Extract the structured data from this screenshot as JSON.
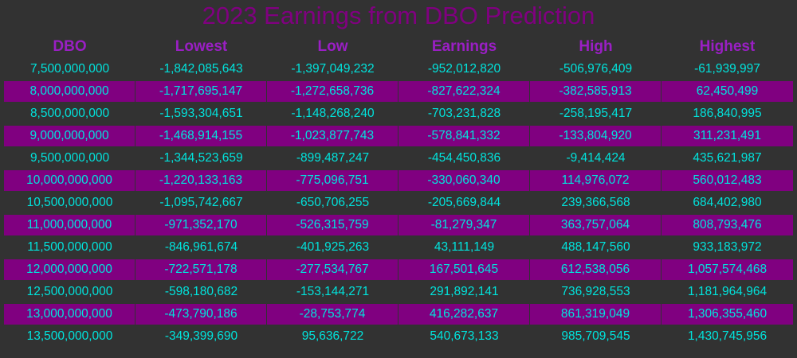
{
  "chart_data": {
    "type": "table",
    "title": "2023 Earnings from DBO Prediction",
    "columns": [
      "DBO",
      "Lowest",
      "Low",
      "Earnings",
      "High",
      "Highest"
    ],
    "rows": [
      [
        "7,500,000,000",
        "-1,842,085,643",
        "-1,397,049,232",
        "-952,012,820",
        "-506,976,409",
        "-61,939,997"
      ],
      [
        "8,000,000,000",
        "-1,717,695,147",
        "-1,272,658,736",
        "-827,622,324",
        "-382,585,913",
        "62,450,499"
      ],
      [
        "8,500,000,000",
        "-1,593,304,651",
        "-1,148,268,240",
        "-703,231,828",
        "-258,195,417",
        "186,840,995"
      ],
      [
        "9,000,000,000",
        "-1,468,914,155",
        "-1,023,877,743",
        "-578,841,332",
        "-133,804,920",
        "311,231,491"
      ],
      [
        "9,500,000,000",
        "-1,344,523,659",
        "-899,487,247",
        "-454,450,836",
        "-9,414,424",
        "435,621,987"
      ],
      [
        "10,000,000,000",
        "-1,220,133,163",
        "-775,096,751",
        "-330,060,340",
        "114,976,072",
        "560,012,483"
      ],
      [
        "10,500,000,000",
        "-1,095,742,667",
        "-650,706,255",
        "-205,669,844",
        "239,366,568",
        "684,402,980"
      ],
      [
        "11,000,000,000",
        "-971,352,170",
        "-526,315,759",
        "-81,279,347",
        "363,757,064",
        "808,793,476"
      ],
      [
        "11,500,000,000",
        "-846,961,674",
        "-401,925,263",
        "43,111,149",
        "488,147,560",
        "933,183,972"
      ],
      [
        "12,000,000,000",
        "-722,571,178",
        "-277,534,767",
        "167,501,645",
        "612,538,056",
        "1,057,574,468"
      ],
      [
        "12,500,000,000",
        "-598,180,682",
        "-153,144,271",
        "291,892,141",
        "736,928,553",
        "1,181,964,964"
      ],
      [
        "13,000,000,000",
        "-473,790,186",
        "-28,753,774",
        "416,282,637",
        "861,319,049",
        "1,306,355,460"
      ],
      [
        "13,500,000,000",
        "-349,399,690",
        "95,636,722",
        "540,673,133",
        "985,709,545",
        "1,430,745,956"
      ]
    ],
    "colors": {
      "background": "#323232",
      "title": "#800080",
      "header": "#9a1fc4",
      "cell_text": "#00e3dc",
      "alt_row": "#800080"
    }
  }
}
